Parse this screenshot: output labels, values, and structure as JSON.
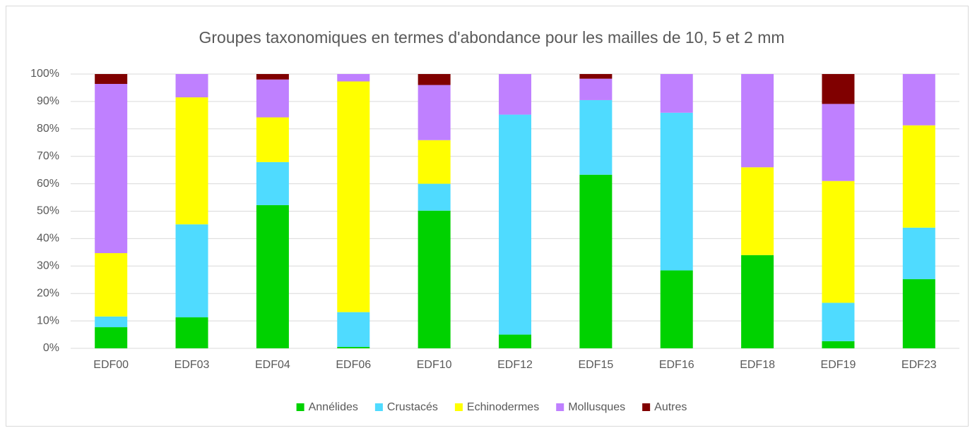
{
  "chart_data": {
    "type": "stacked_bar",
    "title": "Groupes taxonomiques en termes d'abondance pour les mailles de 10, 5 et 2 mm",
    "categories": [
      "EDF00",
      "EDF03",
      "EDF04",
      "EDF06",
      "EDF10",
      "EDF12",
      "EDF15",
      "EDF16",
      "EDF18",
      "EDF19",
      "EDF23"
    ],
    "series": [
      {
        "name": "Annélides",
        "color": "#00d200",
        "values": [
          7.7,
          11.3,
          52.2,
          0.5,
          50.2,
          5,
          63.3,
          28.4,
          34,
          2.6,
          25.2
        ]
      },
      {
        "name": "Crustacés",
        "color": "#4fdbff",
        "values": [
          3.9,
          33.9,
          15.7,
          12.7,
          9.8,
          80.2,
          27.2,
          57.5,
          0,
          14,
          18.8
        ]
      },
      {
        "name": "Echinodermes",
        "color": "#ffff00",
        "values": [
          23.1,
          46.3,
          16.3,
          84.1,
          15.9,
          0,
          0,
          0,
          32,
          44.4,
          37.3
        ]
      },
      {
        "name": "Mollusques",
        "color": "#bf80ff",
        "values": [
          61.7,
          8.5,
          13.8,
          2.7,
          20.1,
          14.8,
          7.8,
          14.1,
          34,
          28.1,
          18.7
        ]
      },
      {
        "name": "Autres",
        "color": "#800000",
        "values": [
          3.6,
          0,
          2,
          0,
          4,
          0,
          1.7,
          0,
          0,
          10.9,
          0
        ]
      }
    ],
    "ylim": [
      0,
      100
    ],
    "yticks": [
      {
        "value": 0,
        "label": "0%"
      },
      {
        "value": 10,
        "label": "10%"
      },
      {
        "value": 20,
        "label": "20%"
      },
      {
        "value": 30,
        "label": "30%"
      },
      {
        "value": 40,
        "label": "40%"
      },
      {
        "value": 50,
        "label": "50%"
      },
      {
        "value": 60,
        "label": "60%"
      },
      {
        "value": 70,
        "label": "70%"
      },
      {
        "value": 80,
        "label": "80%"
      },
      {
        "value": 90,
        "label": "90%"
      },
      {
        "value": 100,
        "label": "100%"
      }
    ],
    "grid": true,
    "legend": "bottom"
  }
}
